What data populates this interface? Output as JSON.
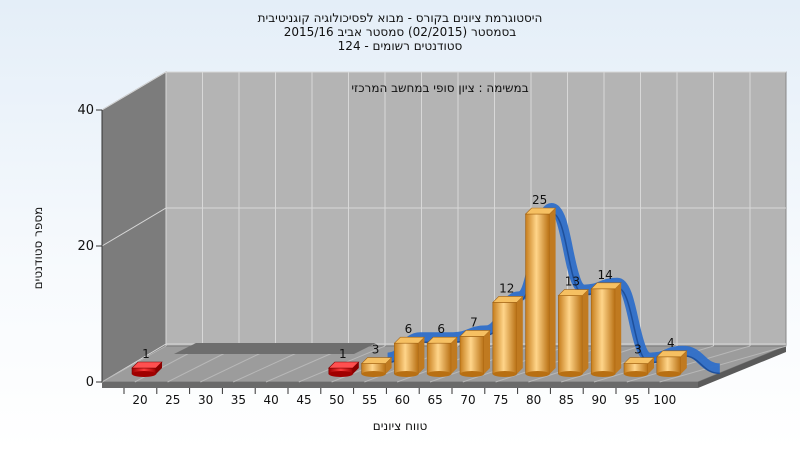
{
  "chart_data": {
    "type": "bar",
    "title_lines": [
      "היסטוגרמת ציונים בקורס - מבוא לפסיכולוגיה קוגניטיבית",
      "בסמסטר  (02/2015)  סמסטר אביב 2015/16",
      "סטודנטים רשומים - 124"
    ],
    "subtitle": "במשימה : ציון סופי במחשב המרכזי",
    "xlabel": "טווח ציונים",
    "ylabel": "מספר סטודנטים",
    "categories": [
      "20",
      "25",
      "30",
      "35",
      "40",
      "45",
      "50",
      "55",
      "60",
      "65",
      "70",
      "75",
      "80",
      "85",
      "90",
      "95",
      "100"
    ],
    "values": [
      1,
      0,
      0,
      0,
      0,
      0,
      1,
      3,
      6,
      6,
      7,
      12,
      25,
      13,
      14,
      3,
      4
    ],
    "value_labels": [
      "1",
      "",
      "",
      "",
      "",
      "",
      "1",
      "3",
      "6",
      "6",
      "7",
      "12",
      "25",
      "13",
      "14",
      "3",
      "4"
    ],
    "low_value_color": "#d40000",
    "bar_color": "#e8a844",
    "curve_color": "#2f6fc9",
    "yticks": [
      "0",
      "20",
      "40"
    ],
    "ylim": [
      0,
      40
    ],
    "grid": true
  }
}
